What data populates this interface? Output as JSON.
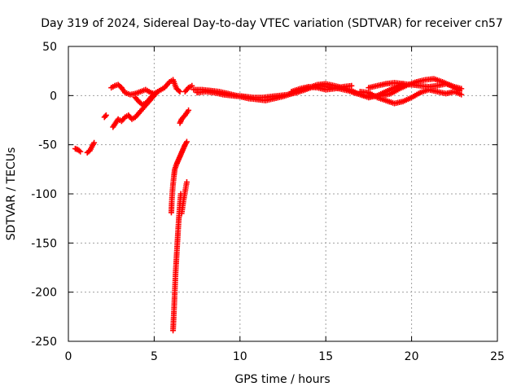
{
  "chart_data": {
    "type": "scatter",
    "title": "Day 319 of 2024, Sidereal Day-to-day VTEC variation (SDTVAR) for receiver cn57",
    "xlabel": "GPS time / hours",
    "ylabel": "SDTVAR / TECUs",
    "xlim": [
      0,
      25
    ],
    "ylim": [
      -250,
      50
    ],
    "xticks": [
      0,
      5,
      10,
      15,
      20,
      25
    ],
    "yticks": [
      -250,
      -200,
      -150,
      -100,
      -50,
      0,
      50
    ],
    "xtick_labels": [
      "0",
      "5",
      "10",
      "15",
      "20",
      "25"
    ],
    "ytick_labels": [
      "-250",
      "-200",
      "-150",
      "-100",
      "-50",
      "0",
      "50"
    ],
    "grid": true,
    "marker": "+",
    "series": [
      {
        "name": "SDTVAR",
        "color": "#ff0000",
        "segments": [
          [
            [
              0.4,
              -54
            ],
            [
              0.55,
              -55
            ],
            [
              0.7,
              -57
            ]
          ],
          [
            [
              1.1,
              -58
            ],
            [
              1.25,
              -56
            ],
            [
              1.4,
              -51
            ],
            [
              1.5,
              -48
            ]
          ],
          [
            [
              2.1,
              -22
            ],
            [
              2.2,
              -20
            ]
          ],
          [
            [
              2.6,
              -32
            ],
            [
              2.75,
              -28
            ],
            [
              2.9,
              -24
            ],
            [
              3.1,
              -26
            ],
            [
              3.3,
              -22
            ],
            [
              3.5,
              -20
            ],
            [
              3.7,
              -24
            ],
            [
              3.9,
              -22
            ],
            [
              4.1,
              -18
            ],
            [
              4.3,
              -14
            ],
            [
              4.5,
              -10
            ],
            [
              4.7,
              -6
            ],
            [
              4.9,
              -2
            ],
            [
              5.1,
              2
            ]
          ],
          [
            [
              2.5,
              8
            ],
            [
              2.7,
              10
            ],
            [
              2.9,
              11
            ],
            [
              3.1,
              8
            ],
            [
              3.3,
              3
            ],
            [
              3.6,
              1
            ],
            [
              3.9,
              2
            ],
            [
              4.2,
              4
            ],
            [
              4.5,
              6
            ],
            [
              4.8,
              3
            ],
            [
              5.0,
              2
            ],
            [
              5.3,
              5
            ],
            [
              5.6,
              8
            ],
            [
              5.9,
              14
            ],
            [
              6.1,
              16
            ],
            [
              6.3,
              7
            ],
            [
              6.5,
              4
            ]
          ],
          [
            [
              3.9,
              -2
            ],
            [
              4.1,
              -6
            ],
            [
              4.3,
              -9
            ],
            [
              4.5,
              -8
            ],
            [
              4.7,
              -4
            ],
            [
              4.9,
              0
            ]
          ],
          [
            [
              6.0,
              -119
            ],
            [
              6.02,
              -110
            ],
            [
              6.05,
              -100
            ],
            [
              6.1,
              -90
            ],
            [
              6.15,
              -82
            ],
            [
              6.2,
              -75
            ],
            [
              6.3,
              -70
            ],
            [
              6.4,
              -66
            ],
            [
              6.5,
              -62
            ],
            [
              6.6,
              -58
            ],
            [
              6.7,
              -54
            ],
            [
              6.8,
              -50
            ],
            [
              6.9,
              -47
            ]
          ],
          [
            [
              6.1,
              -239
            ],
            [
              6.15,
              -220
            ],
            [
              6.2,
              -200
            ],
            [
              6.25,
              -180
            ],
            [
              6.3,
              -165
            ],
            [
              6.35,
              -150
            ],
            [
              6.4,
              -135
            ],
            [
              6.45,
              -122
            ],
            [
              6.5,
              -110
            ],
            [
              6.55,
              -100
            ]
          ],
          [
            [
              6.6,
              -120
            ],
            [
              6.7,
              -108
            ],
            [
              6.8,
              -98
            ],
            [
              6.9,
              -88
            ]
          ],
          [
            [
              6.5,
              -28
            ],
            [
              6.6,
              -24
            ],
            [
              6.8,
              -20
            ],
            [
              7.0,
              -15
            ]
          ],
          [
            [
              6.8,
              4
            ],
            [
              7.0,
              8
            ],
            [
              7.2,
              10
            ]
          ],
          [
            [
              7.3,
              6
            ],
            [
              7.8,
              6
            ],
            [
              8.3,
              5
            ],
            [
              8.8,
              4
            ],
            [
              9.3,
              2
            ],
            [
              9.8,
              0
            ],
            [
              10.3,
              -1
            ],
            [
              10.8,
              -2
            ],
            [
              11.3,
              -2
            ],
            [
              11.8,
              -1
            ],
            [
              12.3,
              0
            ],
            [
              12.8,
              1
            ],
            [
              13.3,
              3
            ],
            [
              13.8,
              6
            ],
            [
              14.3,
              9
            ],
            [
              14.8,
              10
            ],
            [
              15.3,
              8
            ],
            [
              15.8,
              7
            ],
            [
              16.3,
              5
            ],
            [
              16.8,
              2
            ],
            [
              17.3,
              0
            ],
            [
              17.8,
              -1
            ],
            [
              18.3,
              0
            ],
            [
              18.8,
              2
            ],
            [
              19.3,
              7
            ],
            [
              19.8,
              11
            ],
            [
              20.3,
              14
            ],
            [
              20.8,
              16
            ],
            [
              21.3,
              17
            ],
            [
              21.8,
              14
            ],
            [
              22.3,
              10
            ],
            [
              22.8,
              5
            ]
          ],
          [
            [
              7.5,
              3
            ],
            [
              8.0,
              4
            ],
            [
              8.5,
              3
            ],
            [
              9.0,
              1
            ],
            [
              9.5,
              0
            ],
            [
              10.0,
              -1
            ],
            [
              10.5,
              -3
            ],
            [
              11.0,
              -4
            ],
            [
              11.5,
              -5
            ],
            [
              12.0,
              -3
            ],
            [
              12.5,
              -1
            ],
            [
              13.0,
              2
            ],
            [
              13.5,
              5
            ],
            [
              14.0,
              8
            ],
            [
              14.5,
              11
            ],
            [
              15.0,
              12
            ],
            [
              15.5,
              10
            ],
            [
              16.0,
              8
            ],
            [
              16.5,
              5
            ],
            [
              17.0,
              1
            ],
            [
              17.5,
              -2
            ],
            [
              18.0,
              0
            ],
            [
              18.5,
              4
            ],
            [
              19.0,
              8
            ],
            [
              19.5,
              12
            ],
            [
              20.0,
              11
            ],
            [
              20.5,
              10
            ],
            [
              21.0,
              9
            ],
            [
              21.5,
              10
            ],
            [
              22.0,
              12
            ],
            [
              22.5,
              9
            ],
            [
              22.9,
              7
            ]
          ],
          [
            [
              13.0,
              4
            ],
            [
              13.5,
              7
            ],
            [
              14.0,
              9
            ],
            [
              14.5,
              8
            ],
            [
              15.0,
              6
            ],
            [
              15.5,
              7
            ],
            [
              16.0,
              9
            ],
            [
              16.5,
              10
            ]
          ],
          [
            [
              17.0,
              4
            ],
            [
              17.5,
              3
            ],
            [
              18.0,
              -2
            ],
            [
              18.5,
              -5
            ],
            [
              19.0,
              -8
            ],
            [
              19.5,
              -6
            ],
            [
              20.0,
              -2
            ],
            [
              20.5,
              3
            ],
            [
              21.0,
              6
            ],
            [
              21.5,
              4
            ],
            [
              22.0,
              2
            ],
            [
              22.5,
              4
            ],
            [
              22.9,
              1
            ]
          ],
          [
            [
              17.5,
              8
            ],
            [
              18.0,
              10
            ],
            [
              18.5,
              12
            ],
            [
              19.0,
              13
            ],
            [
              19.5,
              12
            ]
          ]
        ]
      }
    ]
  }
}
